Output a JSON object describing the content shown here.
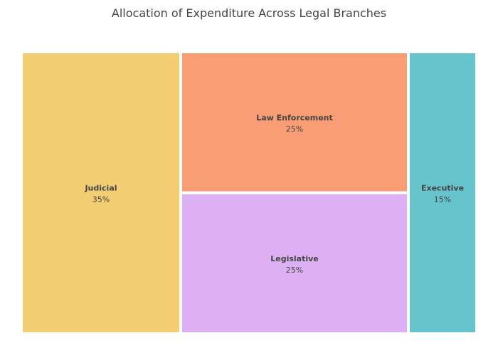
{
  "chart_data": {
    "type": "treemap",
    "title": "Allocation of Expenditure Across Legal Branches",
    "items": [
      {
        "name": "Judicial",
        "value": 35,
        "label": "35%",
        "color": "#f3cd71"
      },
      {
        "name": "Law Enforcement",
        "value": 25,
        "label": "25%",
        "color": "#f89d74"
      },
      {
        "name": "Legislative",
        "value": 25,
        "label": "25%",
        "color": "#dcb0f2"
      },
      {
        "name": "Executive",
        "value": 15,
        "label": "15%",
        "color": "#66c5cc"
      }
    ]
  }
}
